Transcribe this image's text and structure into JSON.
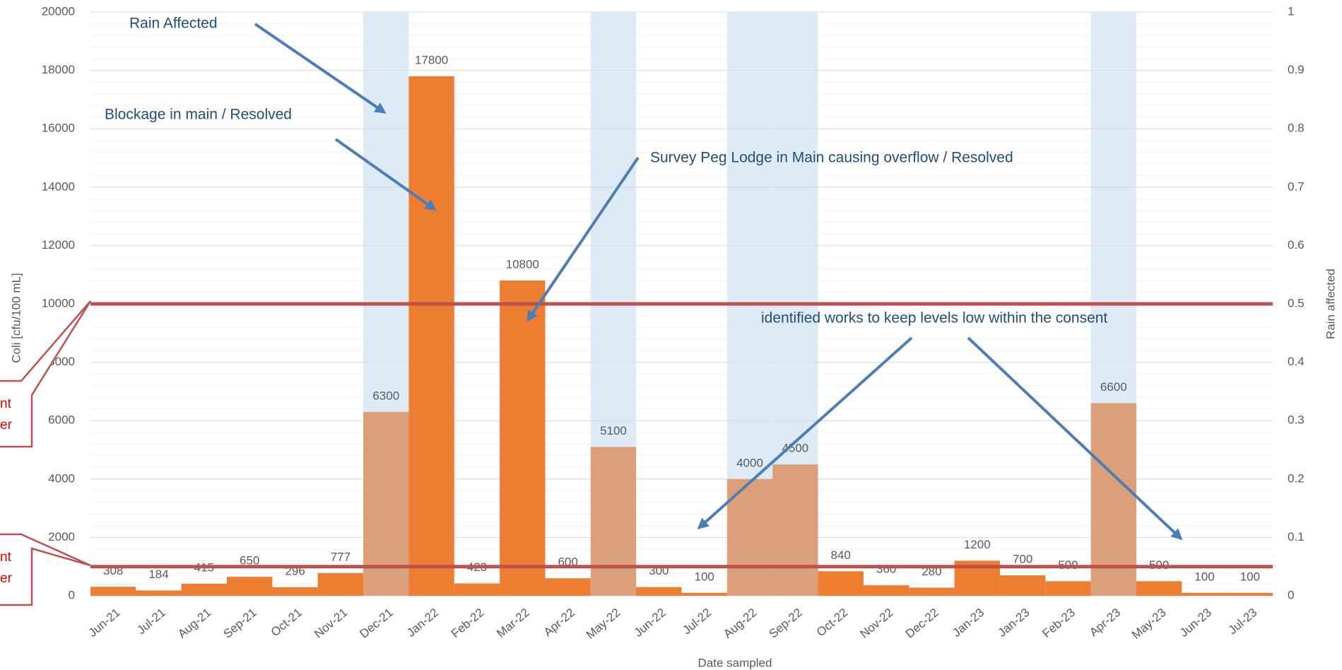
{
  "chart_data": {
    "type": "bar",
    "x_label": "Date sampled",
    "y_label": "Coli [cfu/100 mL]",
    "y2_label": "Rain affected",
    "categories": [
      "Jun-21",
      "Jul-21",
      "Aug-21",
      "Sep-21",
      "Oct-21",
      "Nov-21",
      "Dec-21",
      "Jan-22",
      "Feb-22",
      "Mar-22",
      "Apr-22",
      "May-22",
      "Jun-22",
      "Jul-22",
      "Aug-22",
      "Sep-22",
      "Oct-22",
      "Nov-22",
      "Dec-22",
      "Jan-23",
      "Jan-23",
      "Feb-23",
      "Apr-23",
      "May-23",
      "Jun-23",
      "Jul-23"
    ],
    "series": [
      {
        "color": "#ed7d31",
        "rain_color": "#dba07a",
        "values": [
          308,
          184,
          415,
          650,
          296,
          777,
          6300,
          17800,
          423,
          10800,
          600,
          5100,
          300,
          100,
          4000,
          4500,
          840,
          360,
          280,
          1200,
          700,
          500,
          6600,
          500,
          100,
          100
        ]
      },
      {
        "axis": "y2",
        "color": "#deebf7",
        "values": [
          0,
          0,
          0,
          0,
          0,
          0,
          1,
          0,
          0,
          0,
          0,
          1,
          0,
          0,
          1,
          1,
          0,
          0,
          0,
          0,
          0,
          0,
          1,
          0,
          0,
          0
        ]
      }
    ],
    "reference_lines": [
      {
        "value": 10000,
        "color": "#c0504d"
      },
      {
        "value": 1000,
        "color": "#c0504d"
      }
    ],
    "ylim": [
      0,
      20000
    ],
    "yticks": [
      0,
      2000,
      4000,
      6000,
      8000,
      10000,
      12000,
      14000,
      16000,
      18000,
      20000
    ],
    "y2lim": [
      0,
      1
    ],
    "y2ticks": [
      0,
      0.1,
      0.2,
      0.3,
      0.4,
      0.5,
      0.6,
      0.7,
      0.8,
      0.9,
      1
    ],
    "grid": true,
    "annotations": [
      "Rain Affected",
      "Blockage in main / Resolved",
      "Survey Peg Lodge in Main causing overflow / Resolved",
      "identified works to keep levels low within the consent"
    ],
    "callouts": [
      [
        "nt",
        "er"
      ],
      [
        "nt",
        "er"
      ]
    ]
  }
}
